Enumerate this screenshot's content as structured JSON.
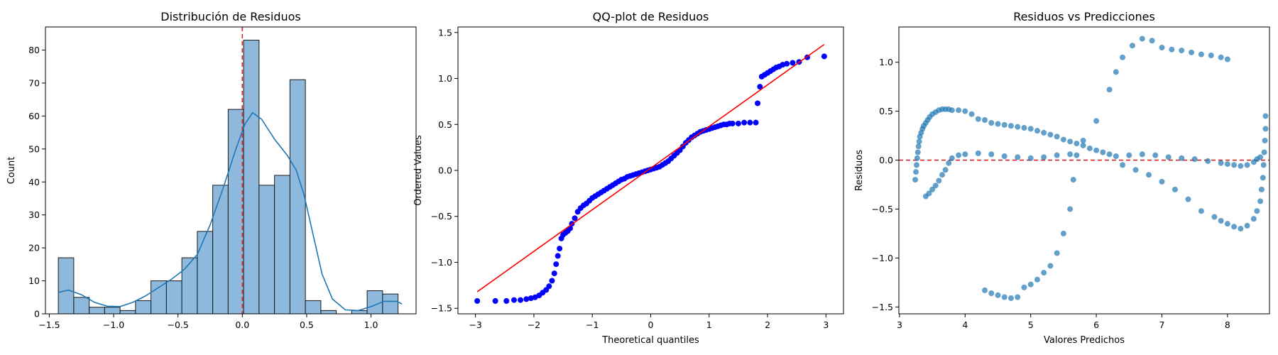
{
  "chart_data": [
    {
      "type": "bar",
      "title": "Distribución de Residuos",
      "xlabel": "",
      "ylabel": "Count",
      "xlim": [
        -1.53,
        1.35
      ],
      "ylim": [
        0,
        87
      ],
      "xticks": [
        -1.5,
        -1.0,
        -0.5,
        0.0,
        0.5,
        1.0
      ],
      "xtick_labels": [
        "−1.5",
        "−1.0",
        "−0.5",
        "0.0",
        "0.5",
        "1.0"
      ],
      "yticks": [
        0,
        10,
        20,
        30,
        40,
        50,
        60,
        70,
        80
      ],
      "bar_color": "#8fb9dc",
      "edge_color": "#1a1a1a",
      "bin_edges": [
        -1.43,
        -1.31,
        -1.19,
        -1.07,
        -0.95,
        -0.83,
        -0.71,
        -0.59,
        -0.47,
        -0.35,
        -0.23,
        -0.11,
        0.01,
        0.13,
        0.25,
        0.37,
        0.49,
        0.61,
        0.73,
        0.85,
        0.97,
        1.09,
        1.21
      ],
      "counts": [
        17,
        5,
        2,
        2,
        1,
        4,
        10,
        10,
        17,
        25,
        39,
        62,
        83,
        39,
        42,
        71,
        4,
        1,
        0,
        1,
        7,
        6
      ],
      "kde_color": "#1f77b4",
      "kde_x": [
        -1.43,
        -1.35,
        -1.25,
        -1.15,
        -1.05,
        -0.95,
        -0.85,
        -0.75,
        -0.65,
        -0.55,
        -0.45,
        -0.35,
        -0.25,
        -0.15,
        -0.05,
        0.02,
        0.08,
        0.15,
        0.25,
        0.35,
        0.42,
        0.48,
        0.55,
        0.62,
        0.7,
        0.8,
        0.9,
        1.0,
        1.1,
        1.2,
        1.24
      ],
      "kde_y": [
        6.5,
        7.2,
        5.8,
        3.5,
        2.3,
        2.2,
        3.5,
        5.5,
        8.0,
        10.5,
        13.5,
        18,
        27,
        38,
        50,
        57.5,
        61,
        59,
        53,
        48,
        43.5,
        36,
        24,
        12,
        4.5,
        1.2,
        1.0,
        2.2,
        3.8,
        3.8,
        3.0
      ],
      "vline": {
        "x": 0.0,
        "color": "#d62728",
        "style": "dashed"
      }
    },
    {
      "type": "scatter",
      "title": "QQ-plot de Residuos",
      "xlabel": "Theoretical quantiles",
      "ylabel": "Ordered Values",
      "xlim": [
        -3.3,
        3.3
      ],
      "ylim": [
        -1.56,
        1.56
      ],
      "xticks": [
        -3,
        -2,
        -1,
        0,
        1,
        2,
        3
      ],
      "xtick_labels": [
        "−3",
        "−2",
        "−1",
        "0",
        "1",
        "2",
        "3"
      ],
      "yticks": [
        -1.5,
        -1.0,
        -0.5,
        0.0,
        0.5,
        1.0,
        1.5
      ],
      "ytick_labels": [
        "−1.5",
        "−1.0",
        "−0.5",
        "0.0",
        "0.5",
        "1.0",
        "1.5"
      ],
      "point_color": "#0000ff",
      "fit_line": {
        "x": [
          -2.97,
          2.97
        ],
        "y": [
          -1.32,
          1.37
        ],
        "color": "#ff0000"
      },
      "points": [
        [
          -2.97,
          -1.42
        ],
        [
          -2.66,
          -1.42
        ],
        [
          -2.47,
          -1.42
        ],
        [
          -2.34,
          -1.41
        ],
        [
          -2.23,
          -1.41
        ],
        [
          -2.13,
          -1.4
        ],
        [
          -2.05,
          -1.39
        ],
        [
          -1.98,
          -1.38
        ],
        [
          -1.91,
          -1.36
        ],
        [
          -1.85,
          -1.33
        ],
        [
          -1.79,
          -1.3
        ],
        [
          -1.74,
          -1.26
        ],
        [
          -1.69,
          -1.2
        ],
        [
          -1.65,
          -1.12
        ],
        [
          -1.62,
          -1.02
        ],
        [
          -1.59,
          -0.93
        ],
        [
          -1.56,
          -0.85
        ],
        [
          -1.53,
          -0.74
        ],
        [
          -1.5,
          -0.7
        ],
        [
          -1.46,
          -0.68
        ],
        [
          -1.42,
          -0.66
        ],
        [
          -1.38,
          -0.63
        ],
        [
          -1.35,
          -0.58
        ],
        [
          -1.3,
          -0.52
        ],
        [
          -1.25,
          -0.45
        ],
        [
          -1.2,
          -0.41
        ],
        [
          -1.15,
          -0.38
        ],
        [
          -1.1,
          -0.36
        ],
        [
          -1.05,
          -0.33
        ],
        [
          -1.0,
          -0.3
        ],
        [
          -0.95,
          -0.28
        ],
        [
          -0.9,
          -0.26
        ],
        [
          -0.85,
          -0.24
        ],
        [
          -0.8,
          -0.22
        ],
        [
          -0.75,
          -0.2
        ],
        [
          -0.7,
          -0.18
        ],
        [
          -0.65,
          -0.16
        ],
        [
          -0.6,
          -0.14
        ],
        [
          -0.55,
          -0.12
        ],
        [
          -0.5,
          -0.1
        ],
        [
          -0.45,
          -0.09
        ],
        [
          -0.4,
          -0.07
        ],
        [
          -0.35,
          -0.06
        ],
        [
          -0.3,
          -0.05
        ],
        [
          -0.25,
          -0.04
        ],
        [
          -0.2,
          -0.03
        ],
        [
          -0.15,
          -0.02
        ],
        [
          -0.1,
          -0.01
        ],
        [
          -0.05,
          0.0
        ],
        [
          0.0,
          0.01
        ],
        [
          0.05,
          0.02
        ],
        [
          0.1,
          0.03
        ],
        [
          0.15,
          0.04
        ],
        [
          0.2,
          0.06
        ],
        [
          0.25,
          0.08
        ],
        [
          0.3,
          0.1
        ],
        [
          0.35,
          0.13
        ],
        [
          0.4,
          0.16
        ],
        [
          0.45,
          0.19
        ],
        [
          0.5,
          0.22
        ],
        [
          0.55,
          0.26
        ],
        [
          0.6,
          0.3
        ],
        [
          0.65,
          0.33
        ],
        [
          0.7,
          0.36
        ],
        [
          0.75,
          0.38
        ],
        [
          0.8,
          0.4
        ],
        [
          0.85,
          0.42
        ],
        [
          0.9,
          0.43
        ],
        [
          0.95,
          0.44
        ],
        [
          1.0,
          0.45
        ],
        [
          1.05,
          0.46
        ],
        [
          1.1,
          0.47
        ],
        [
          1.15,
          0.48
        ],
        [
          1.2,
          0.49
        ],
        [
          1.25,
          0.5
        ],
        [
          1.3,
          0.5
        ],
        [
          1.35,
          0.51
        ],
        [
          1.4,
          0.51
        ],
        [
          1.5,
          0.51
        ],
        [
          1.6,
          0.52
        ],
        [
          1.7,
          0.52
        ],
        [
          1.8,
          0.52
        ],
        [
          1.83,
          0.73
        ],
        [
          1.87,
          0.91
        ],
        [
          1.9,
          1.02
        ],
        [
          1.95,
          1.04
        ],
        [
          2.0,
          1.06
        ],
        [
          2.05,
          1.08
        ],
        [
          2.1,
          1.1
        ],
        [
          2.15,
          1.12
        ],
        [
          2.2,
          1.13
        ],
        [
          2.26,
          1.15
        ],
        [
          2.33,
          1.16
        ],
        [
          2.43,
          1.17
        ],
        [
          2.54,
          1.18
        ],
        [
          2.68,
          1.23
        ],
        [
          2.97,
          1.24
        ]
      ]
    },
    {
      "type": "scatter",
      "title": "Residuos vs Predicciones",
      "xlabel": "Valores Predichos",
      "ylabel": "Residuos",
      "xlim": [
        2.99,
        8.64
      ],
      "ylim": [
        -1.57,
        1.36
      ],
      "xticks": [
        3,
        4,
        5,
        6,
        7,
        8
      ],
      "xtick_labels": [
        "3",
        "4",
        "5",
        "6",
        "7",
        "8"
      ],
      "yticks": [
        -1.5,
        -1.0,
        -0.5,
        0.0,
        0.5,
        1.0
      ],
      "ytick_labels": [
        "−1.5",
        "−1.0",
        "−0.5",
        "0.0",
        "0.5",
        "1.0"
      ],
      "point_color": "#1f77b4",
      "point_alpha": 0.7,
      "hline": {
        "y": 0.0,
        "color": "#d62728",
        "style": "dashed"
      },
      "points": [
        [
          3.24,
          -0.2
        ],
        [
          3.25,
          -0.12
        ],
        [
          3.26,
          -0.05
        ],
        [
          3.27,
          0.02
        ],
        [
          3.28,
          0.08
        ],
        [
          3.29,
          0.14
        ],
        [
          3.3,
          0.19
        ],
        [
          3.31,
          0.24
        ],
        [
          3.33,
          0.28
        ],
        [
          3.35,
          0.32
        ],
        [
          3.37,
          0.35
        ],
        [
          3.4,
          0.38
        ],
        [
          3.43,
          0.41
        ],
        [
          3.46,
          0.44
        ],
        [
          3.5,
          0.47
        ],
        [
          3.55,
          0.49
        ],
        [
          3.6,
          0.51
        ],
        [
          3.65,
          0.52
        ],
        [
          3.7,
          0.52
        ],
        [
          3.75,
          0.52
        ],
        [
          3.8,
          0.51
        ],
        [
          3.9,
          0.51
        ],
        [
          4.0,
          0.5
        ],
        [
          4.1,
          0.47
        ],
        [
          4.2,
          0.42
        ],
        [
          4.3,
          0.41
        ],
        [
          4.4,
          0.38
        ],
        [
          4.5,
          0.37
        ],
        [
          4.6,
          0.36
        ],
        [
          4.7,
          0.35
        ],
        [
          4.8,
          0.34
        ],
        [
          4.9,
          0.33
        ],
        [
          5.0,
          0.32
        ],
        [
          5.1,
          0.3
        ],
        [
          5.2,
          0.28
        ],
        [
          5.3,
          0.26
        ],
        [
          5.4,
          0.24
        ],
        [
          5.5,
          0.21
        ],
        [
          5.6,
          0.19
        ],
        [
          5.7,
          0.17
        ],
        [
          5.8,
          0.15
        ],
        [
          5.9,
          0.12
        ],
        [
          6.0,
          0.1
        ],
        [
          6.1,
          0.08
        ],
        [
          6.2,
          0.06
        ],
        [
          6.3,
          0.04
        ],
        [
          3.4,
          -0.37
        ],
        [
          3.45,
          -0.34
        ],
        [
          3.5,
          -0.3
        ],
        [
          3.55,
          -0.26
        ],
        [
          3.6,
          -0.21
        ],
        [
          3.65,
          -0.15
        ],
        [
          3.7,
          -0.1
        ],
        [
          3.75,
          -0.03
        ],
        [
          3.8,
          0.02
        ],
        [
          3.9,
          0.05
        ],
        [
          4.0,
          0.06
        ],
        [
          4.2,
          0.07
        ],
        [
          4.4,
          0.06
        ],
        [
          4.6,
          0.04
        ],
        [
          4.8,
          0.03
        ],
        [
          5.0,
          0.02
        ],
        [
          5.2,
          0.03
        ],
        [
          5.4,
          0.05
        ],
        [
          5.6,
          0.06
        ],
        [
          4.3,
          -1.33
        ],
        [
          4.4,
          -1.36
        ],
        [
          4.5,
          -1.38
        ],
        [
          4.6,
          -1.4
        ],
        [
          4.7,
          -1.41
        ],
        [
          4.8,
          -1.4
        ],
        [
          4.9,
          -1.3
        ],
        [
          5.0,
          -1.27
        ],
        [
          5.1,
          -1.22
        ],
        [
          5.2,
          -1.15
        ],
        [
          5.3,
          -1.08
        ],
        [
          5.4,
          -0.95
        ],
        [
          5.5,
          -0.75
        ],
        [
          5.6,
          -0.5
        ],
        [
          5.65,
          -0.2
        ],
        [
          5.7,
          0.05
        ],
        [
          5.8,
          0.2
        ],
        [
          6.0,
          0.4
        ],
        [
          6.2,
          0.72
        ],
        [
          6.3,
          0.9
        ],
        [
          6.4,
          1.05
        ],
        [
          6.55,
          1.17
        ],
        [
          6.7,
          1.24
        ],
        [
          6.85,
          1.22
        ],
        [
          7.0,
          1.15
        ],
        [
          7.15,
          1.13
        ],
        [
          7.3,
          1.12
        ],
        [
          7.45,
          1.1
        ],
        [
          7.6,
          1.08
        ],
        [
          7.75,
          1.07
        ],
        [
          7.9,
          1.05
        ],
        [
          8.0,
          1.03
        ],
        [
          6.4,
          -0.05
        ],
        [
          6.6,
          -0.1
        ],
        [
          6.8,
          -0.15
        ],
        [
          7.0,
          -0.22
        ],
        [
          7.2,
          -0.3
        ],
        [
          7.4,
          -0.4
        ],
        [
          7.6,
          -0.52
        ],
        [
          7.8,
          -0.58
        ],
        [
          7.9,
          -0.62
        ],
        [
          8.0,
          -0.65
        ],
        [
          8.1,
          -0.68
        ],
        [
          8.2,
          -0.7
        ],
        [
          8.3,
          -0.67
        ],
        [
          8.4,
          -0.6
        ],
        [
          8.45,
          -0.52
        ],
        [
          8.5,
          -0.42
        ],
        [
          8.52,
          -0.3
        ],
        [
          8.54,
          -0.18
        ],
        [
          8.55,
          -0.05
        ],
        [
          8.56,
          0.08
        ],
        [
          8.57,
          0.2
        ],
        [
          8.58,
          0.32
        ],
        [
          8.58,
          0.45
        ],
        [
          6.5,
          0.05
        ],
        [
          6.7,
          0.06
        ],
        [
          6.9,
          0.05
        ],
        [
          7.1,
          0.03
        ],
        [
          7.3,
          0.02
        ],
        [
          7.5,
          0.01
        ],
        [
          7.7,
          -0.01
        ],
        [
          7.9,
          -0.03
        ],
        [
          8.0,
          -0.04
        ],
        [
          8.1,
          -0.05
        ],
        [
          8.2,
          -0.06
        ],
        [
          8.3,
          -0.05
        ],
        [
          8.4,
          -0.02
        ],
        [
          8.45,
          0.01
        ],
        [
          8.5,
          0.03
        ]
      ]
    }
  ]
}
